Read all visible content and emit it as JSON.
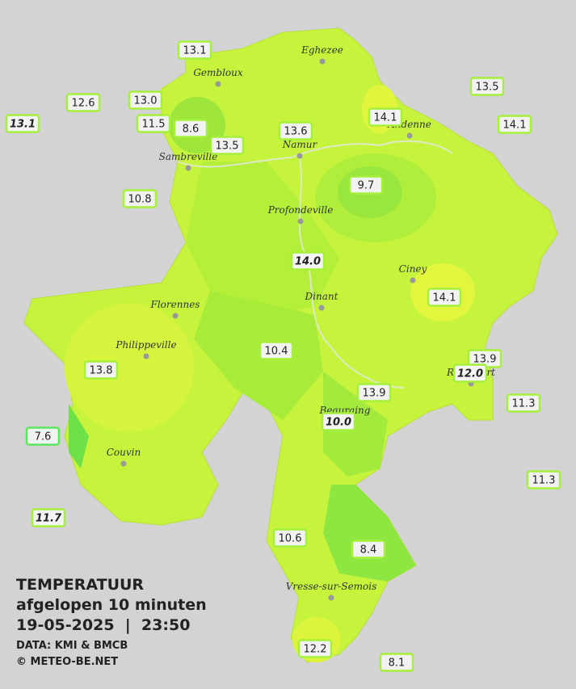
{
  "legend": {
    "title": "TEMPERATUUR",
    "subtitle": "afgelopen 10 minuten",
    "datetime": "19-05-2025  |  23:50",
    "source": "DATA: KMI & BMCB",
    "credit": "© METEO-BE.NET"
  },
  "cities": [
    "Eghezee",
    "Gembloux",
    "Andenne",
    "Namur",
    "Sambreville",
    "Profondeville",
    "Ciney",
    "Florennes",
    "Dinant",
    "Philippeville",
    "Beauraing",
    "Rochefort",
    "Couvin",
    "Vresse-sur-Semois"
  ],
  "stations": [
    "13.1",
    "12.6",
    "13.0",
    "13.1",
    "11.5",
    "8.6",
    "13.5",
    "13.6",
    "14.1",
    "13.5",
    "14.1",
    "10.8",
    "9.7",
    "14.0",
    "14.1",
    "10.4",
    "13.8",
    "13.9",
    "12.0",
    "13.9",
    "11.3",
    "10.0",
    "7.6",
    "11.3",
    "11.7",
    "10.6",
    "8.4",
    "12.2",
    "8.1"
  ]
}
